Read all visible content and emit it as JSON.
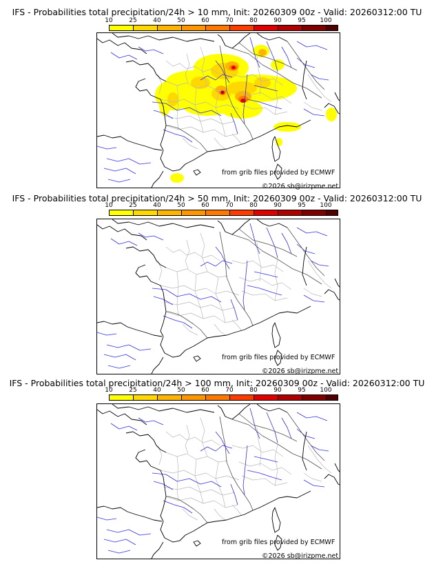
{
  "colorbar": {
    "ticks": [
      "10",
      "25",
      "40",
      "50",
      "60",
      "70",
      "80",
      "90",
      "95",
      "100"
    ],
    "colors": [
      "#ffff00",
      "#ffd800",
      "#ffb400",
      "#ff9600",
      "#ff7800",
      "#ff3c00",
      "#e00000",
      "#b00000",
      "#800000",
      "#500000"
    ]
  },
  "panels": [
    {
      "title": "IFS - Probabilities total precipitation/24h > 10 mm, Init: 20260309 00z - Valid: 20260312:00 TU",
      "credit": "from grib files provided by ECMWF",
      "copyright": "©2026 sb@irizpme.net",
      "shaded": true
    },
    {
      "title": "IFS - Probabilities total precipitation/24h > 50 mm, Init: 20260309 00z - Valid: 20260312:00 TU",
      "credit": "from grib files provided by ECMWF",
      "copyright": "©2026 sb@irizpme.net",
      "shaded": false
    },
    {
      "title": "IFS - Probabilities total precipitation/24h > 100 mm, Init: 20260309 00z - Valid: 20260312:00 TU",
      "credit": "from grib files provided by ECMWF",
      "copyright": "©2026 sb@irizpme.net",
      "shaded": false
    }
  ]
}
